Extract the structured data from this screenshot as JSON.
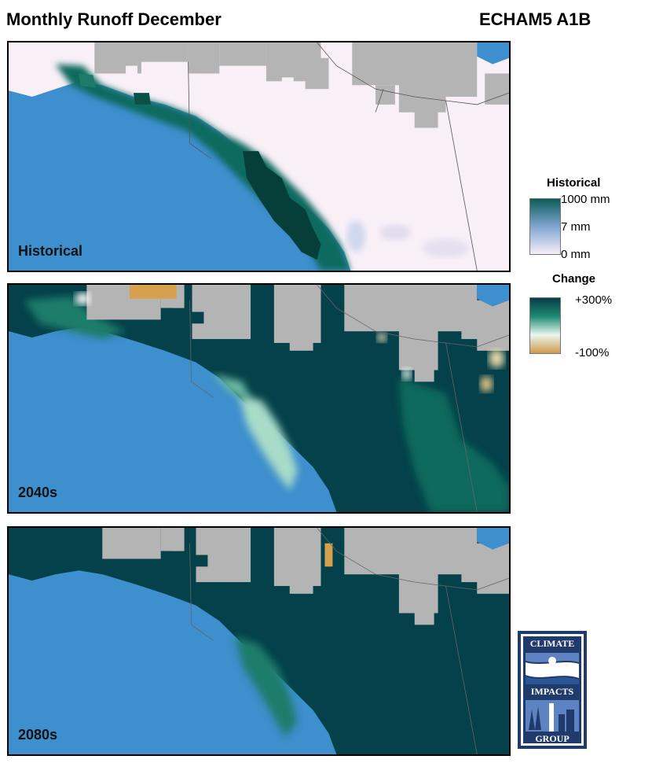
{
  "header": {
    "title": "Monthly Runoff December",
    "model": "ECHAM5 A1B"
  },
  "panels": [
    {
      "label": "Historical"
    },
    {
      "label": "2040s"
    },
    {
      "label": "2080s"
    }
  ],
  "legend_historical": {
    "title": "Historical",
    "ticks": [
      "1000 mm",
      "7 mm",
      "0 mm"
    ],
    "colors": [
      "#0b5c57",
      "#7fa6d2",
      "#f7eef6"
    ]
  },
  "legend_change": {
    "title": "Change",
    "ticks": [
      "+300%",
      "-100%"
    ],
    "colors": [
      "#063c48",
      "#1f8a73",
      "#e9f6ef",
      "#d09a4b"
    ]
  },
  "logo": {
    "text_top": "CLIMATE",
    "text_mid": "IMPACTS",
    "text_bottom": "GROUP"
  },
  "colors": {
    "ocean": "#3d8fcd",
    "no_data": "#b4b4b4",
    "land_light": "#f8eff7",
    "dark_teal": "#04414a",
    "mid_teal": "#0e6b5e",
    "light_teal": "#a8dcc8",
    "tan": "#d6a14f",
    "logo_navy": "#1f3a6b"
  }
}
